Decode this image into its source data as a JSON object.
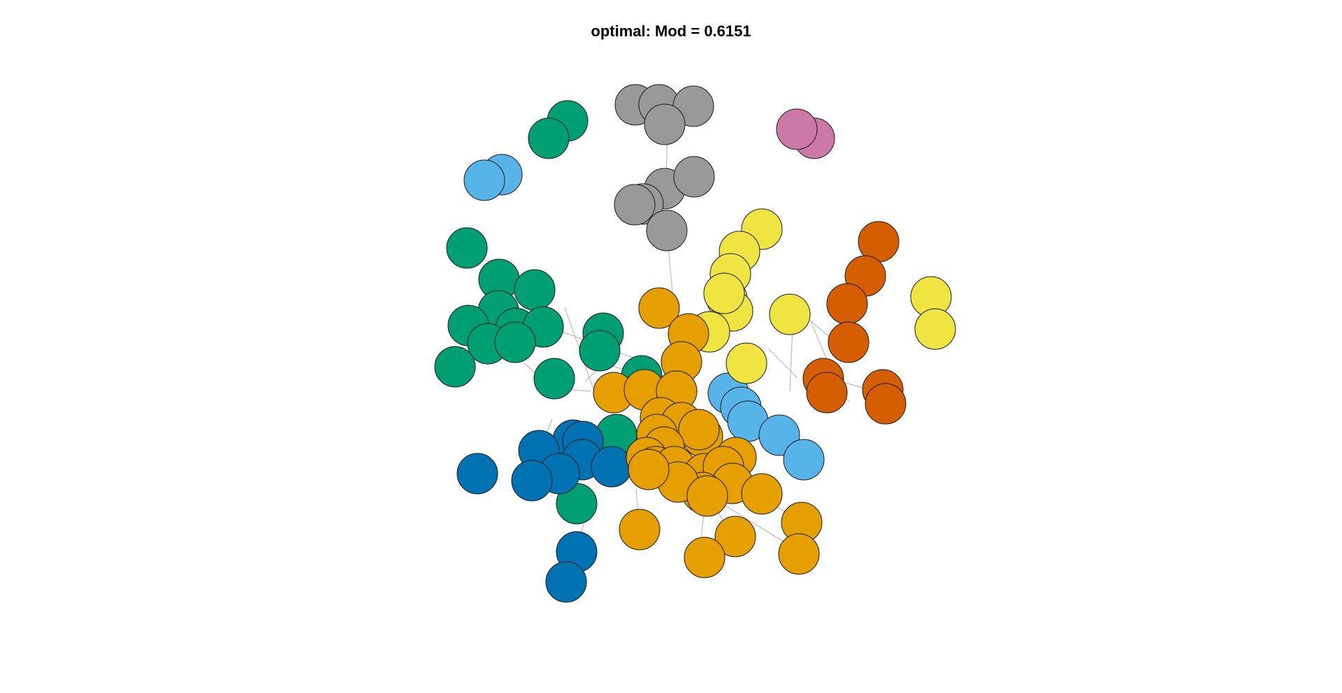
{
  "title": "optimal: Mod = 0.6151",
  "colors": {
    "green": "#009E73",
    "orange": "#E69F00",
    "sky": "#56B4E9",
    "blue": "#0072B2",
    "yellow": "#F0E442",
    "vermillion": "#D55E00",
    "grey": "#999999",
    "pink": "#CC79A7",
    "edge": "#BDBDBD"
  },
  "communities": [
    {
      "id": "grey",
      "nodes": 9
    },
    {
      "id": "pink",
      "nodes": 2
    },
    {
      "id": "green",
      "nodes": 18
    },
    {
      "id": "sky",
      "nodes": 7
    },
    {
      "id": "yellow",
      "nodes": 11
    },
    {
      "id": "vermillion",
      "nodes": 8
    },
    {
      "id": "orange",
      "nodes": 28
    },
    {
      "id": "blue",
      "nodes": 10
    }
  ]
}
